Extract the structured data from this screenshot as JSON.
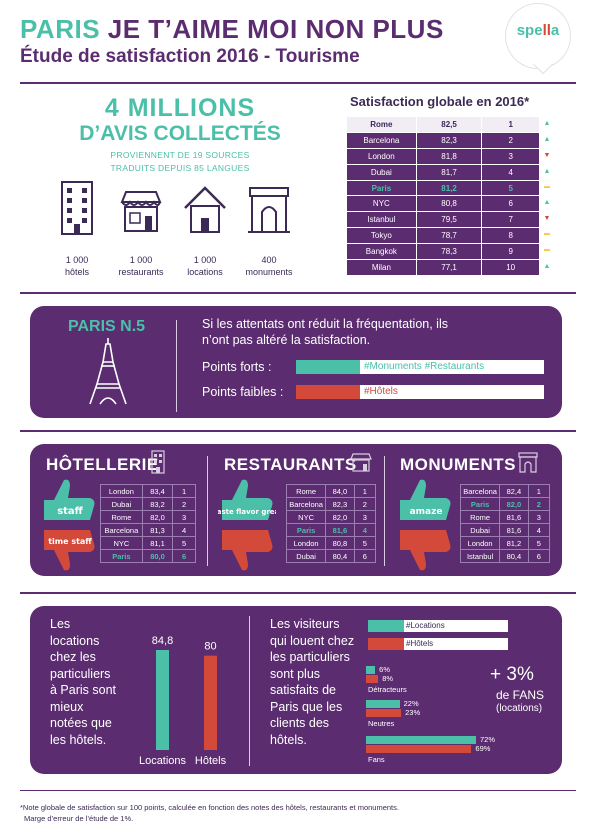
{
  "header": {
    "title_part1": "PARIS",
    "title_part2": "JE T’AIME MOI NON PLUS",
    "subtitle": "Étude de satisfaction 2016 - Tourisme",
    "logo_text_a": "spe",
    "logo_text_b": "ll",
    "logo_text_c": "a"
  },
  "stats": {
    "big_line1": "4 MILLIONS",
    "big_line2": "D’AVIS COLLECTÉS",
    "sub_line1": "PROVIENNENT DE 19 SOURCES",
    "sub_line2": "TRADUITS DEPUIS 85 LANGUES",
    "items": [
      {
        "count": "1 000",
        "label": "hôtels",
        "icon": "hotel-building-icon"
      },
      {
        "count": "1 000",
        "label": "restaurants",
        "icon": "restaurant-icon"
      },
      {
        "count": "1 000",
        "label": "locations",
        "icon": "house-icon"
      },
      {
        "count": "400",
        "label": "monuments",
        "icon": "monument-icon"
      }
    ]
  },
  "satisfaction": {
    "title": "Satisfaction globale en 2016*",
    "rows": [
      {
        "city": "Rome",
        "score": "82,5",
        "rank": "1",
        "trend": "up"
      },
      {
        "city": "Barcelona",
        "score": "82,3",
        "rank": "2",
        "trend": "up"
      },
      {
        "city": "London",
        "score": "81,8",
        "rank": "3",
        "trend": "down"
      },
      {
        "city": "Dubai",
        "score": "81,7",
        "rank": "4",
        "trend": "up"
      },
      {
        "city": "Paris",
        "score": "81,2",
        "rank": "5",
        "trend": "same"
      },
      {
        "city": "NYC",
        "score": "80,8",
        "rank": "6",
        "trend": "up"
      },
      {
        "city": "Istanbul",
        "score": "79,5",
        "rank": "7",
        "trend": "down"
      },
      {
        "city": "Tokyo",
        "score": "78,7",
        "rank": "8",
        "trend": "same"
      },
      {
        "city": "Bangkok",
        "score": "78,3",
        "rank": "9",
        "trend": "same"
      },
      {
        "city": "Milan",
        "score": "77,1",
        "rank": "10",
        "trend": "up"
      }
    ],
    "trend_colors": {
      "up": "#4bbfa8",
      "down": "#d44a3a",
      "same": "#f2c94c"
    }
  },
  "paris_panel": {
    "title": "PARIS N.5",
    "text": "Si les attentats ont réduit la fréquentation, ils n’ont pas altéré la satisfaction.",
    "strong_label": "Points forts :",
    "strong_tags": "#Monuments  #Restaurants",
    "weak_label": "Points faibles :",
    "weak_tags": "#Hôtels"
  },
  "categories": [
    {
      "title": "HÔTELLERIE",
      "icon": "hotel-building-icon",
      "rows": [
        {
          "city": "London",
          "score": "83,4",
          "rank": "1"
        },
        {
          "city": "Dubai",
          "score": "83,2",
          "rank": "2"
        },
        {
          "city": "Rome",
          "score": "82,0",
          "rank": "3"
        },
        {
          "city": "Barcelona",
          "score": "81,3",
          "rank": "4"
        },
        {
          "city": "NYC",
          "score": "81,1",
          "rank": "5"
        },
        {
          "city": "Paris",
          "score": "80,0",
          "rank": "6"
        }
      ],
      "paris_index": 5
    },
    {
      "title": "RESTAURANTS",
      "icon": "restaurant-icon",
      "rows": [
        {
          "city": "Rome",
          "score": "84,0",
          "rank": "1"
        },
        {
          "city": "Barcelona",
          "score": "82,3",
          "rank": "2"
        },
        {
          "city": "NYC",
          "score": "82,0",
          "rank": "3"
        },
        {
          "city": "Paris",
          "score": "81,6",
          "rank": "4"
        },
        {
          "city": "London",
          "score": "80,8",
          "rank": "5"
        },
        {
          "city": "Dubai",
          "score": "80,4",
          "rank": "6"
        }
      ],
      "paris_index": 3
    },
    {
      "title": "MONUMENTS",
      "icon": "monument-icon",
      "rows": [
        {
          "city": "Barcelona",
          "score": "82,4",
          "rank": "1"
        },
        {
          "city": "Paris",
          "score": "82,0",
          "rank": "2"
        },
        {
          "city": "Rome",
          "score": "81,6",
          "rank": "3"
        },
        {
          "city": "Dubai",
          "score": "81,6",
          "rank": "4"
        },
        {
          "city": "London",
          "score": "81,2",
          "rank": "5"
        },
        {
          "city": "Istanbul",
          "score": "80,4",
          "rank": "6"
        }
      ],
      "paris_index": 1
    }
  ],
  "cloud_words": {
    "hotels_good": "staff",
    "hotels_bad": "time staff",
    "rest_good": "taste flavor great",
    "monu_good": "amaze"
  },
  "locations_panel": {
    "text": "Les locations chez les particuliers à Paris sont mieux notées que les hôtels.",
    "bars": [
      {
        "label": "Locations",
        "value": 84.8,
        "value_text": "84,8",
        "color": "#4bbfa8"
      },
      {
        "label": "Hôtels",
        "value": 80,
        "value_text": "80",
        "color": "#d44a3a"
      }
    ],
    "text2": "Les visiteurs qui louent chez les particuliers sont plus satisfaits de Paris que les clients des hôtels.",
    "legend": [
      {
        "tag": "#Locations",
        "color": "#4bbfa8"
      },
      {
        "tag": "#Hôtels",
        "color": "#d44a3a"
      }
    ],
    "groups": [
      {
        "name": "Détracteurs",
        "locations": 6,
        "hotels": 8,
        "loc_text": "6%",
        "hot_text": "8%"
      },
      {
        "name": "Neutres",
        "locations": 22,
        "hotels": 23,
        "loc_text": "22%",
        "hot_text": "23%"
      },
      {
        "name": "Fans",
        "locations": 72,
        "hotels": 69,
        "loc_text": "72%",
        "hot_text": "69%"
      }
    ],
    "fans_big": "+ 3%",
    "fans_line1": "de FANS",
    "fans_line2": "(locations)"
  },
  "footnote": {
    "line1": "*Note globale de satisfaction sur 100 points, calculée en fonction des notes des hôtels, restaurants et monuments.",
    "line2": "Marge d’erreur de l’étude de 1%."
  }
}
